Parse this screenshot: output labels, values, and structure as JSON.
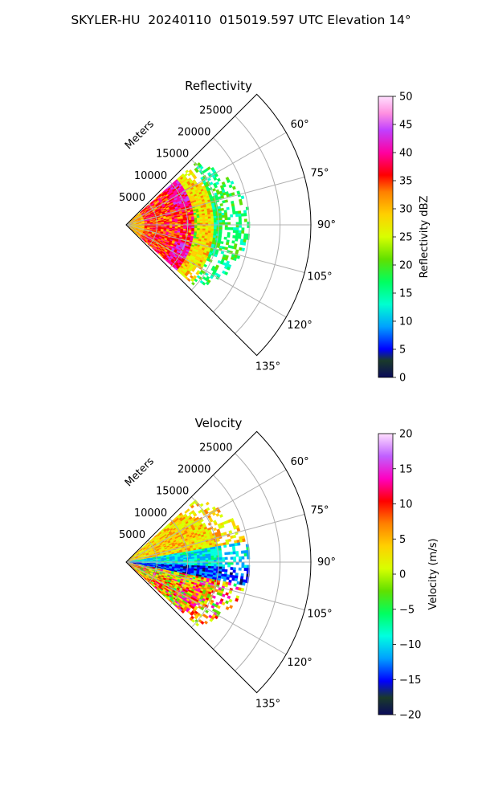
{
  "figure": {
    "title": "SKYLER-HU  20240110  015019.597 UTC Elevation 14°"
  },
  "chart_data": [
    {
      "type": "heatmap",
      "projection": "polar-sector",
      "title": "Reflectivity",
      "range_axis_label": "Meters",
      "range_ticks": [
        5000,
        10000,
        15000,
        20000,
        25000
      ],
      "range_tick_labels": [
        "5000",
        "10000",
        "15000",
        "20000",
        "25000"
      ],
      "range_max": 30000,
      "azimuth_range_deg": [
        45,
        135
      ],
      "azimuth_ticks": [
        60,
        75,
        90,
        105,
        120,
        135
      ],
      "azimuth_tick_labels": [
        "60°",
        "75°",
        "90°",
        "105°",
        "120°",
        "135°"
      ],
      "grid": true,
      "data_extent_m": 19000,
      "colorbar": {
        "label": "Reflectivity dBZ",
        "min": 0,
        "max": 50,
        "ticks": [
          0,
          5,
          10,
          15,
          20,
          25,
          30,
          35,
          40,
          45,
          50
        ],
        "tick_labels": [
          "0",
          "5",
          "10",
          "15",
          "20",
          "25",
          "30",
          "35",
          "40",
          "45",
          "50"
        ]
      },
      "field_description_bands": [
        {
          "range_m": [
            0,
            3000
          ],
          "value_range": [
            28,
            36
          ]
        },
        {
          "range_m": [
            3000,
            8000
          ],
          "value_range": [
            32,
            42
          ]
        },
        {
          "range_m": [
            8000,
            11000
          ],
          "value_range": [
            38,
            46
          ]
        },
        {
          "range_m": [
            11000,
            14000
          ],
          "value_range": [
            25,
            35
          ]
        },
        {
          "range_m": [
            14000,
            19000
          ],
          "value_range": [
            15,
            24
          ]
        }
      ]
    },
    {
      "type": "heatmap",
      "projection": "polar-sector",
      "title": "Velocity",
      "range_axis_label": "Meters",
      "range_ticks": [
        5000,
        10000,
        15000,
        20000,
        25000
      ],
      "range_tick_labels": [
        "5000",
        "10000",
        "15000",
        "20000",
        "25000"
      ],
      "range_max": 30000,
      "azimuth_range_deg": [
        45,
        135
      ],
      "azimuth_ticks": [
        60,
        75,
        90,
        105,
        120,
        135
      ],
      "azimuth_tick_labels": [
        "60°",
        "75°",
        "90°",
        "105°",
        "120°",
        "135°"
      ],
      "grid": true,
      "data_extent_m": 19000,
      "colorbar": {
        "label": "Velocity (m/s)",
        "min": -20,
        "max": 20,
        "ticks": [
          -20,
          -15,
          -10,
          -5,
          0,
          5,
          10,
          15,
          20
        ],
        "tick_labels": [
          "−20",
          "−15",
          "−10",
          "−5",
          "0",
          "5",
          "10",
          "15",
          "20"
        ]
      },
      "field_description_by_azimuth": [
        {
          "azimuth_deg": [
            55,
            80
          ],
          "value_range": [
            0,
            8
          ]
        },
        {
          "azimuth_deg": [
            80,
            92
          ],
          "value_range": [
            -12,
            -5
          ]
        },
        {
          "azimuth_deg": [
            92,
            100
          ],
          "value_range": [
            -16,
            -10
          ]
        },
        {
          "azimuth_deg": [
            100,
            125
          ],
          "value_range": [
            -5,
            14
          ]
        }
      ]
    }
  ]
}
